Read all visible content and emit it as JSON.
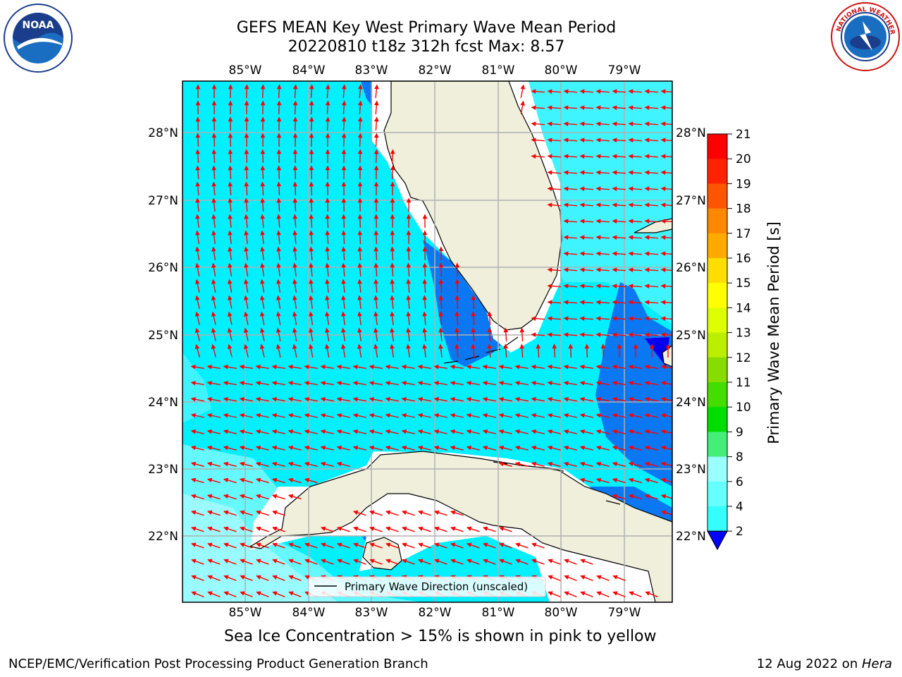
{
  "title_line1": "GEFS MEAN Key West Primary Wave Mean Period",
  "title_line2": "20220810 t18z 312h fcst   Max: 8.57",
  "map": {
    "lon_labels": [
      "85°W",
      "84°W",
      "83°W",
      "82°W",
      "81°W",
      "80°W",
      "79°W"
    ],
    "lat_labels": [
      "28°N",
      "27°N",
      "26°N",
      "25°N",
      "24°N",
      "23°N",
      "22°N"
    ],
    "land_color": "#efefdc",
    "coast_color": "#000000",
    "grid_color": "#b0b0b0",
    "arrow_color": "#ff0000"
  },
  "colorbar": {
    "label": "Primary Wave Mean Period [s]",
    "ticks": [
      "2",
      "4",
      "6",
      "8",
      "9",
      "10",
      "11",
      "12",
      "13",
      "14",
      "15",
      "16",
      "17",
      "18",
      "19",
      "20",
      "21"
    ],
    "colors": [
      "#0066ff",
      "#00ccff",
      "#33ffff",
      "#66ffff",
      "#99ffff",
      "#44ee77",
      "#00dd00",
      "#44dd00",
      "#88dd00",
      "#bbee00",
      "#ddff00",
      "#ffff00",
      "#ffdd00",
      "#ffaa00",
      "#ff8800",
      "#ff5500",
      "#ff2200",
      "#ff0000"
    ],
    "extend_color": "#0000ff"
  },
  "legend": {
    "label": "Primary Wave Direction (unscaled)"
  },
  "note": "Sea Ice Concentration > 15% is shown in pink to yellow",
  "footer_left": "NCEP/EMC/Verification Post Processing Product Generation Branch",
  "footer_date": "12 Aug 2022 on ",
  "footer_machine": "Hera",
  "logos": {
    "left": "NOAA",
    "right": "NATIONAL WEATHER SERVICE"
  }
}
